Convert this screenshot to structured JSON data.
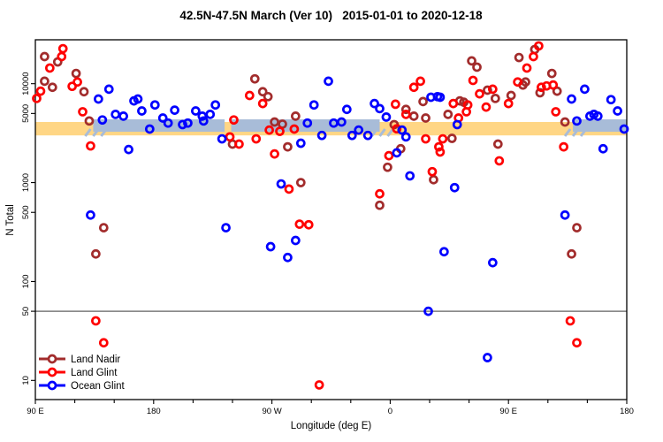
{
  "title": "42.5N-47.5N March (Ver 10)   2015-01-01 to 2020-12-18",
  "chart_data": {
    "type": "scatter",
    "title": "42.5N-47.5N March (Ver 10)   2015-01-01 to 2020-12-18",
    "xlabel": "Longitude (deg E)",
    "ylabel": "N Total",
    "y_scale": "log",
    "x_axis": {
      "range": [
        90,
        540
      ],
      "minor_tick_step": 30,
      "major_ticks": [
        {
          "value": 90,
          "label": "90 E"
        },
        {
          "value": 180,
          "label": "180"
        },
        {
          "value": 270,
          "label": "90 W"
        },
        {
          "value": 360,
          "label": "0"
        },
        {
          "value": 450,
          "label": "90 E"
        },
        {
          "value": 540,
          "label": "180"
        }
      ]
    },
    "y_axis": {
      "range": [
        6.4,
        27800
      ],
      "ticks": [
        {
          "value": 10000,
          "label": "10000"
        },
        {
          "value": 5000,
          "label": "5000"
        },
        {
          "value": 1000,
          "label": "1000"
        },
        {
          "value": 500,
          "label": "500"
        },
        {
          "value": 100,
          "label": "100"
        },
        {
          "value": 50,
          "label": "50"
        },
        {
          "value": 10,
          "label": "10"
        }
      ]
    },
    "reference_line": {
      "value": 50,
      "color": "#7a7a7a"
    },
    "bands": [
      {
        "name": "land-mean-band",
        "color": "#FFD685",
        "value_range": [
          3000,
          4100
        ],
        "lon_segments": [
          [
            90,
            540
          ]
        ]
      },
      {
        "name": "ocean-mean-band",
        "color": "#A8BCD8",
        "value_range": [
          3270,
          4360
        ],
        "lon_segments": [
          [
            134,
            234
          ],
          [
            239,
            352
          ],
          [
            499,
            540
          ]
        ],
        "hatch_transitions": [
          134,
          352,
          499
        ]
      }
    ],
    "legend": {
      "position": "bottom-left",
      "entries": [
        "Land Nadir",
        "Land Glint",
        "Ocean Glint"
      ]
    },
    "series": [
      {
        "name": "Land Nadir",
        "color": "#A22C2C",
        "points": [
          [
            97,
            18800
          ],
          [
            107,
            16600
          ],
          [
            97,
            10600
          ],
          [
            103,
            9200
          ],
          [
            121,
            12700
          ],
          [
            127,
            8300
          ],
          [
            131,
            4200
          ],
          [
            142,
            350
          ],
          [
            136,
            190
          ],
          [
            240,
            2450
          ],
          [
            257,
            11200
          ],
          [
            263,
            8300
          ],
          [
            267,
            7400
          ],
          [
            288,
            4700
          ],
          [
            272,
            4100
          ],
          [
            278,
            3900
          ],
          [
            282,
            2300
          ],
          [
            292,
            1000
          ],
          [
            385,
            6600
          ],
          [
            372,
            5500
          ],
          [
            378,
            4700
          ],
          [
            387,
            4500
          ],
          [
            363,
            3860
          ],
          [
            368,
            2200
          ],
          [
            358,
            1430
          ],
          [
            393,
            1070
          ],
          [
            352,
            590
          ],
          [
            422,
            17000
          ],
          [
            426,
            14700
          ],
          [
            434,
            8600
          ],
          [
            440,
            7100
          ],
          [
            413,
            6700
          ],
          [
            416,
            6500
          ],
          [
            404,
            4900
          ],
          [
            407,
            2800
          ],
          [
            442,
            2450
          ],
          [
            452,
            7600
          ],
          [
            461,
            9700
          ],
          [
            458,
            18400
          ],
          [
            470,
            22200
          ],
          [
            463,
            10400
          ],
          [
            474,
            8100
          ],
          [
            483,
            12700
          ],
          [
            487,
            8400
          ],
          [
            493,
            4100
          ],
          [
            502,
            350
          ],
          [
            498,
            190
          ]
        ]
      },
      {
        "name": "Land Glint",
        "color": "#FF0000",
        "points": [
          [
            111,
            22600
          ],
          [
            110,
            18800
          ],
          [
            101,
            14400
          ],
          [
            94,
            8400
          ],
          [
            91,
            7100
          ],
          [
            118,
            9400
          ],
          [
            122,
            10400
          ],
          [
            126,
            5200
          ],
          [
            132,
            2350
          ],
          [
            136,
            40
          ],
          [
            142,
            24
          ],
          [
            241,
            4300
          ],
          [
            238,
            2900
          ],
          [
            253,
            7600
          ],
          [
            263,
            6300
          ],
          [
            268,
            3400
          ],
          [
            276,
            3300
          ],
          [
            287,
            3480
          ],
          [
            258,
            2770
          ],
          [
            245,
            2450
          ],
          [
            272,
            1950
          ],
          [
            283,
            860
          ],
          [
            291,
            380
          ],
          [
            298,
            375
          ],
          [
            306,
            9
          ],
          [
            383,
            10600
          ],
          [
            378,
            9200
          ],
          [
            364,
            6200
          ],
          [
            372,
            4900
          ],
          [
            365,
            3500
          ],
          [
            387,
            2770
          ],
          [
            397,
            2300
          ],
          [
            359,
            1870
          ],
          [
            352,
            770
          ],
          [
            392,
            1290
          ],
          [
            423,
            10800
          ],
          [
            428,
            7900
          ],
          [
            438,
            8800
          ],
          [
            433,
            5800
          ],
          [
            408,
            6300
          ],
          [
            419,
            6100
          ],
          [
            418,
            5200
          ],
          [
            412,
            4500
          ],
          [
            400,
            2770
          ],
          [
            398,
            2040
          ],
          [
            443,
            1660
          ],
          [
            450,
            6300
          ],
          [
            457,
            10400
          ],
          [
            464,
            14400
          ],
          [
            469,
            18800
          ],
          [
            475,
            9200
          ],
          [
            473,
            24100
          ],
          [
            479,
            9500
          ],
          [
            484,
            9700
          ],
          [
            486,
            5200
          ],
          [
            492,
            2300
          ],
          [
            497,
            40
          ],
          [
            502,
            24
          ]
        ]
      },
      {
        "name": "Ocean Glint",
        "color": "#0000FF",
        "points": [
          [
            146,
            8800
          ],
          [
            138,
            7000
          ],
          [
            141,
            4300
          ],
          [
            151,
            4900
          ],
          [
            157,
            4700
          ],
          [
            165,
            6700
          ],
          [
            161,
            2160
          ],
          [
            132,
            470
          ],
          [
            168,
            7000
          ],
          [
            171,
            5300
          ],
          [
            181,
            6100
          ],
          [
            187,
            4500
          ],
          [
            191,
            4000
          ],
          [
            177,
            3480
          ],
          [
            196,
            5400
          ],
          [
            202,
            3860
          ],
          [
            206,
            4000
          ],
          [
            212,
            5300
          ],
          [
            217,
            4700
          ],
          [
            218,
            4200
          ],
          [
            223,
            4900
          ],
          [
            227,
            6100
          ],
          [
            232,
            2770
          ],
          [
            235,
            350
          ],
          [
            313,
            10600
          ],
          [
            302,
            6100
          ],
          [
            297,
            4000
          ],
          [
            317,
            4000
          ],
          [
            308,
            3000
          ],
          [
            292,
            2500
          ],
          [
            277,
            970
          ],
          [
            269,
            225
          ],
          [
            288,
            260
          ],
          [
            282,
            175
          ],
          [
            348,
            6300
          ],
          [
            352,
            5600
          ],
          [
            357,
            4600
          ],
          [
            327,
            5500
          ],
          [
            323,
            4100
          ],
          [
            369,
            3400
          ],
          [
            331,
            3000
          ],
          [
            336,
            3400
          ],
          [
            343,
            3000
          ],
          [
            372,
            2900
          ],
          [
            365,
            2000
          ],
          [
            375,
            1170
          ],
          [
            389,
            50
          ],
          [
            391,
            7300
          ],
          [
            396,
            7400
          ],
          [
            398,
            7300
          ],
          [
            411,
            3860
          ],
          [
            409,
            890
          ],
          [
            401,
            200
          ],
          [
            438,
            155
          ],
          [
            434,
            17
          ],
          [
            508,
            8800
          ],
          [
            498,
            7000
          ],
          [
            528,
            6900
          ],
          [
            533,
            5300
          ],
          [
            502,
            4200
          ],
          [
            512,
            4700
          ],
          [
            515,
            4900
          ],
          [
            518,
            4700
          ],
          [
            538,
            3480
          ],
          [
            522,
            2200
          ],
          [
            493,
            470
          ]
        ]
      }
    ]
  }
}
